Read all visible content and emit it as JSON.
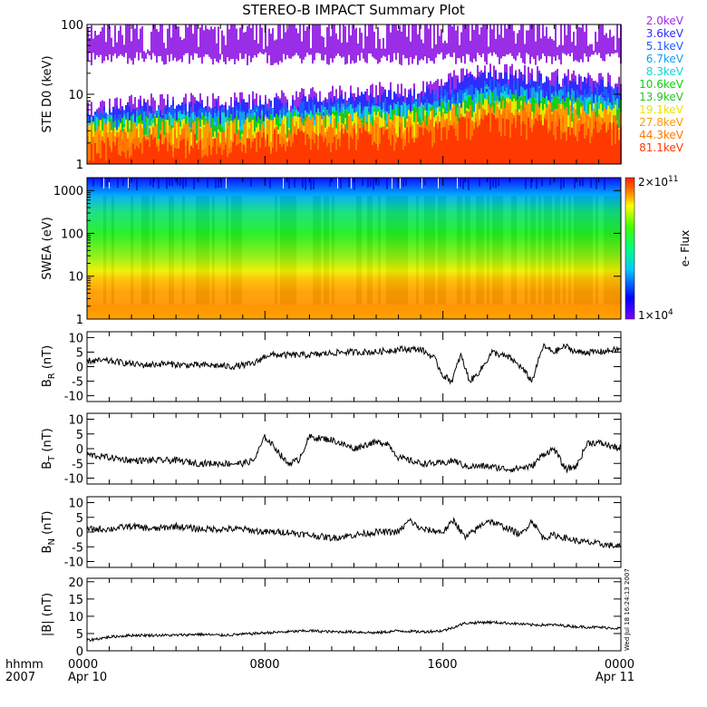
{
  "title": "STEREO-B IMPACT Summary Plot",
  "side_stamp": "Wed Jul 18 16:24:13 2007",
  "time_axis": {
    "row1_labels": [
      "hhmm",
      "0000",
      "0800",
      "1600",
      "0000"
    ],
    "row2_labels": [
      "2007",
      "Apr 10",
      "",
      "",
      "Apr 11"
    ],
    "range_hours": [
      0,
      24
    ],
    "major_ticks_hours": [
      0,
      8,
      16,
      24
    ],
    "minor_tick_step_hours": 1
  },
  "chart_data": [
    {
      "type": "line",
      "panel": "ste",
      "ylabel": "STE D0 (keV)",
      "yscale": "log",
      "ylim": [
        1,
        100
      ],
      "yticks": [
        "1",
        "10",
        "100"
      ],
      "legend_position": "right",
      "channels": [
        {
          "name": "2.0keV",
          "color": "#9a2ee6",
          "level": [
            60,
            62,
            60,
            65,
            70,
            75,
            80,
            70,
            66
          ]
        },
        {
          "name": "3.6keV",
          "color": "#2f2cff",
          "level": [
            4.5,
            6,
            5.8,
            6.5,
            8,
            9,
            16,
            14,
            11
          ]
        },
        {
          "name": "5.1keV",
          "color": "#1e5cff",
          "level": [
            4.0,
            5,
            5.0,
            5.5,
            6.5,
            7,
            12,
            11,
            9
          ]
        },
        {
          "name": "6.7keV",
          "color": "#12a0f0",
          "level": [
            3.6,
            4.3,
            4.3,
            4.8,
            5.5,
            6,
            10,
            9,
            7
          ]
        },
        {
          "name": "8.3keV",
          "color": "#10d6d2",
          "level": [
            3.4,
            4.0,
            4.0,
            4.4,
            5,
            5.5,
            9,
            8,
            6.5
          ]
        },
        {
          "name": "10.6keV",
          "color": "#10d010",
          "level": [
            3.2,
            3.7,
            3.7,
            4.0,
            4.5,
            5,
            8,
            7,
            6
          ]
        },
        {
          "name": "13.9keV",
          "color": "#2cc02c",
          "level": [
            3.1,
            3.5,
            3.5,
            3.8,
            4.2,
            4.7,
            7,
            6.5,
            5.5
          ]
        },
        {
          "name": "19.1keV",
          "color": "#e8e800",
          "level": [
            3.0,
            3.3,
            3.3,
            3.6,
            4.0,
            4.4,
            6.5,
            6,
            5
          ]
        },
        {
          "name": "27.8keV",
          "color": "#ff9900",
          "level": [
            2.9,
            3.1,
            3.1,
            3.4,
            3.8,
            4.1,
            6,
            5.5,
            4.5
          ]
        },
        {
          "name": "44.3keV",
          "color": "#ff7700",
          "level": [
            2.2,
            2.4,
            2.3,
            2.6,
            2.8,
            3.0,
            5,
            4.4,
            3.5
          ]
        },
        {
          "name": "81.1keV",
          "color": "#ff3a00",
          "level": [
            1.6,
            2.0,
            2.0,
            2.3,
            2.5,
            2.6,
            4,
            3.5,
            2.8
          ]
        }
      ]
    },
    {
      "type": "heatmap",
      "panel": "swea",
      "ylabel": "SWEA (eV)",
      "yscale": "log",
      "ylim": [
        1,
        2000
      ],
      "yticks": [
        "1",
        "10",
        "100",
        "1000"
      ],
      "colorbar": {
        "label": "e- Flux",
        "max_label": "2×10",
        "max_exp": "11",
        "min_label": "1×10",
        "min_exp": "4",
        "max": 200000000000.0,
        "min": 10000.0
      }
    },
    {
      "type": "line",
      "panel": "br",
      "ylabel_main": "B",
      "ylabel_sub": "R",
      "ylabel_unit": " (nT)",
      "ylim": [
        -12,
        12
      ],
      "yticks": [
        -10,
        -5,
        0,
        5,
        10
      ],
      "t": [
        0,
        0.8,
        1.5,
        2.5,
        3.5,
        4.5,
        5.5,
        6.5,
        7.5,
        8.1,
        8.5,
        10,
        11.5,
        13,
        14,
        15,
        15.6,
        16,
        16.4,
        16.8,
        17.2,
        17.5,
        17.8,
        18.2,
        18.6,
        19,
        19.5,
        20,
        20.5,
        21,
        21.5,
        22,
        23,
        24
      ],
      "y": [
        2,
        2,
        1.5,
        0.5,
        1,
        0.5,
        0.5,
        0,
        1,
        4,
        4,
        4,
        5,
        5,
        6,
        6,
        3,
        -3,
        -5,
        4,
        -5,
        -3,
        0,
        5,
        4,
        3,
        0,
        -5,
        7,
        5,
        7,
        5,
        5,
        6
      ]
    },
    {
      "type": "line",
      "panel": "bt",
      "ylabel_main": "B",
      "ylabel_sub": "T",
      "ylabel_unit": " (nT)",
      "ylim": [
        -12,
        12
      ],
      "yticks": [
        -10,
        -5,
        0,
        5,
        10
      ],
      "t": [
        0,
        1,
        2,
        3,
        4,
        5,
        6,
        7,
        7.5,
        8,
        8.5,
        9,
        9.5,
        10,
        11,
        12,
        12.8,
        13.5,
        14,
        15,
        16,
        16.5,
        17,
        18,
        19,
        20,
        20.5,
        21,
        21.5,
        22,
        22.5,
        23,
        24
      ],
      "y": [
        -2,
        -3,
        -4,
        -4,
        -4,
        -5,
        -5,
        -5,
        -4,
        4,
        0,
        -5,
        -4,
        4,
        3,
        0,
        2,
        2,
        -3,
        -5,
        -5,
        -4,
        -6,
        -6,
        -7,
        -6,
        -2,
        0,
        -7,
        -6,
        2,
        2,
        0
      ]
    },
    {
      "type": "line",
      "panel": "bn",
      "ylabel_main": "B",
      "ylabel_sub": "N",
      "ylabel_unit": " (nT)",
      "ylim": [
        -12,
        12
      ],
      "yticks": [
        -10,
        -5,
        0,
        5,
        10
      ],
      "t": [
        0,
        1,
        2,
        3,
        4,
        5,
        6,
        7,
        8,
        9,
        10,
        11,
        12,
        13,
        14,
        14.5,
        15,
        16,
        16.5,
        17,
        18,
        19,
        19.5,
        20,
        20.5,
        21,
        22,
        23,
        24
      ],
      "y": [
        1,
        1,
        2,
        1,
        2,
        1,
        1,
        1,
        0,
        0,
        -1,
        -2,
        -1,
        0,
        0,
        4,
        1,
        0,
        4,
        -2,
        4,
        1,
        -1,
        4,
        -2,
        -1,
        -3,
        -4,
        -5
      ]
    },
    {
      "type": "line",
      "panel": "bmag",
      "ylabel": "|B| (nT)",
      "ylim": [
        0,
        21
      ],
      "yticks": [
        0,
        5,
        10,
        15,
        20
      ],
      "t": [
        0,
        1,
        2,
        3,
        4,
        5,
        6,
        7,
        8,
        9,
        10,
        11,
        12,
        13,
        14,
        15,
        16,
        17,
        18,
        19,
        20,
        21,
        22,
        23,
        24
      ],
      "y": [
        3,
        4,
        4.5,
        4.5,
        4.5,
        4.8,
        4.5,
        4.8,
        5.2,
        5.5,
        5.8,
        5.5,
        5.5,
        5.2,
        5.8,
        5.5,
        5.8,
        8,
        8.3,
        8,
        7.5,
        7.5,
        7,
        6.8,
        6.5
      ]
    }
  ]
}
